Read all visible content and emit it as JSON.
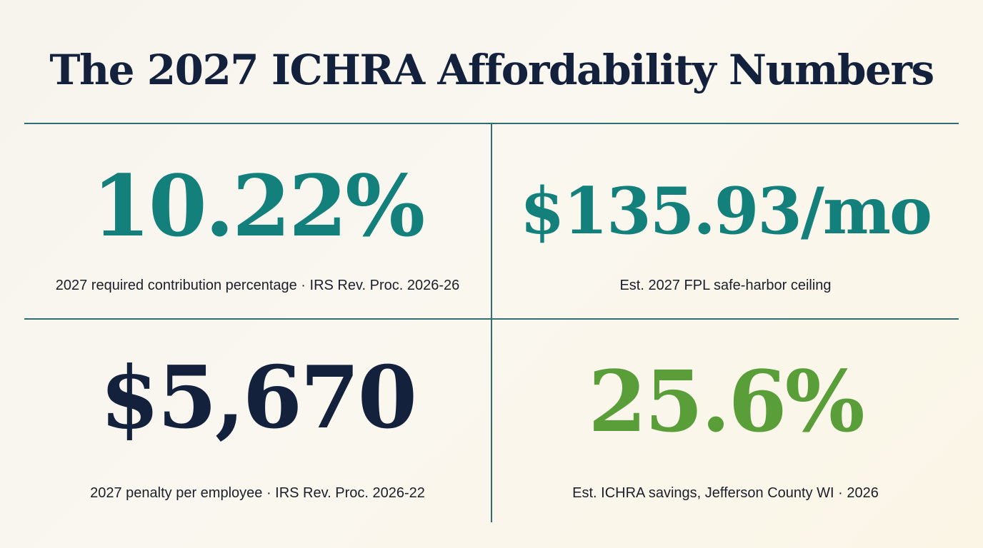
{
  "title": "The 2027 ICHRA Affordability Numbers",
  "stats": [
    {
      "value": "10.22%",
      "caption": "2027 required contribution percentage · IRS Rev. Proc. 2026-26",
      "color": "#13807c"
    },
    {
      "value": "$135.93/mo",
      "caption": "Est. 2027 FPL safe-harbor ceiling",
      "color": "#13807c"
    },
    {
      "value": "$5,670",
      "caption": "2027 penalty per employee · IRS Rev. Proc. 2026-22",
      "color": "#14213d"
    },
    {
      "value": "25.6%",
      "caption": "Est. ICHRA savings, Jefferson County WI · 2026",
      "color": "#5a9e3a"
    }
  ],
  "colors": {
    "title": "#14213d",
    "divider": "#2f6f73",
    "background": "#f8f6ee"
  }
}
